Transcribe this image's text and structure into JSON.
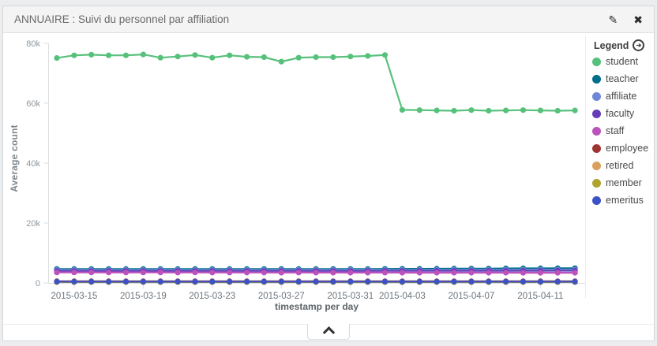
{
  "panel": {
    "title": "ANNUAIRE : Suivi du personnel par affiliation",
    "edit_glyph": "✎",
    "close_glyph": "✖"
  },
  "legend": {
    "title": "Legend"
  },
  "chart_data": {
    "type": "line",
    "title": "",
    "xlabel": "timestamp per day",
    "ylabel": "Average count",
    "ylim": [
      0,
      80000
    ],
    "grid": false,
    "legend_position": "right",
    "y_ticks": [
      {
        "v": 0,
        "label": "0"
      },
      {
        "v": 20000,
        "label": "20k"
      },
      {
        "v": 40000,
        "label": "40k"
      },
      {
        "v": 60000,
        "label": "60k"
      },
      {
        "v": 80000,
        "label": "80k"
      }
    ],
    "x_tick_labels": [
      "2015-03-15",
      "2015-03-19",
      "2015-03-23",
      "2015-03-27",
      "2015-03-31",
      "2015-04-03",
      "2015-04-07",
      "2015-04-11"
    ],
    "x_dates": [
      "2015-03-14",
      "2015-03-15",
      "2015-03-16",
      "2015-03-17",
      "2015-03-18",
      "2015-03-19",
      "2015-03-20",
      "2015-03-21",
      "2015-03-22",
      "2015-03-23",
      "2015-03-24",
      "2015-03-25",
      "2015-03-26",
      "2015-03-27",
      "2015-03-28",
      "2015-03-29",
      "2015-03-30",
      "2015-03-31",
      "2015-04-01",
      "2015-04-02",
      "2015-04-03",
      "2015-04-04",
      "2015-04-05",
      "2015-04-06",
      "2015-04-07",
      "2015-04-08",
      "2015-04-09",
      "2015-04-10",
      "2015-04-11",
      "2015-04-12",
      "2015-04-13"
    ],
    "series": [
      {
        "name": "student",
        "color": "#57c17b",
        "values": [
          75100,
          76000,
          76200,
          76000,
          76000,
          76300,
          75200,
          75600,
          76100,
          75200,
          76000,
          75500,
          75400,
          73900,
          75200,
          75400,
          75400,
          75600,
          75800,
          76100,
          57800,
          57700,
          57600,
          57500,
          57700,
          57500,
          57600,
          57700,
          57600,
          57500,
          57600
        ]
      },
      {
        "name": "teacher",
        "color": "#006e8a",
        "values": [
          4650,
          4640,
          4660,
          4650,
          4640,
          4660,
          4650,
          4630,
          4650,
          4660,
          4640,
          4650,
          4660,
          4650,
          4640,
          4660,
          4650,
          4660,
          4670,
          4680,
          4700,
          4720,
          4740,
          4760,
          4780,
          4800,
          4830,
          4860,
          4880,
          4900,
          4920
        ]
      },
      {
        "name": "affiliate",
        "color": "#6f87d8",
        "values": [
          4350,
          4340,
          4360,
          4350,
          4340,
          4350,
          4360,
          4340,
          4350,
          4350,
          4340,
          4360,
          4350,
          4340,
          4350,
          4360,
          4350,
          4360,
          4370,
          4380,
          4390,
          4400,
          4400,
          4410,
          4420,
          4420,
          4430,
          4440,
          4440,
          4450,
          4460
        ]
      },
      {
        "name": "faculty",
        "color": "#663db8",
        "values": [
          4000,
          3990,
          4010,
          4000,
          3990,
          4000,
          4010,
          3990,
          4000,
          4000,
          3990,
          4010,
          4000,
          3990,
          4000,
          4010,
          4000,
          4000,
          4010,
          4020,
          4020,
          4030,
          4030,
          4040,
          4040,
          4050,
          4050,
          4060,
          4060,
          4070,
          4070
        ]
      },
      {
        "name": "staff",
        "color": "#bc52bc",
        "values": [
          3500,
          3490,
          3500,
          3490,
          3480,
          3490,
          3500,
          3480,
          3490,
          3480,
          3470,
          3480,
          3470,
          3460,
          3470,
          3460,
          3450,
          3460,
          3450,
          3440,
          3440,
          3430,
          3430,
          3420,
          3420,
          3410,
          3410,
          3400,
          3400,
          3390,
          3390
        ]
      },
      {
        "name": "employee",
        "color": "#9e3533",
        "values": [
          550,
          548,
          552,
          550,
          549,
          551,
          550,
          548,
          550,
          551,
          549,
          550,
          551,
          550,
          549,
          550,
          551,
          550,
          550,
          551,
          552,
          550,
          551,
          550,
          552,
          551,
          550,
          552,
          551,
          550,
          552
        ]
      },
      {
        "name": "retired",
        "color": "#daa05d",
        "values": [
          350,
          350,
          351,
          350,
          349,
          350,
          351,
          350,
          350,
          349,
          350,
          351,
          350,
          350,
          351,
          350,
          349,
          350,
          350,
          351,
          350,
          350,
          351,
          350,
          350,
          351,
          350,
          350,
          351,
          350,
          350
        ]
      },
      {
        "name": "member",
        "color": "#b0a42e",
        "values": [
          280,
          280,
          281,
          280,
          279,
          280,
          281,
          280,
          280,
          279,
          280,
          281,
          280,
          280,
          281,
          280,
          279,
          280,
          280,
          281,
          280,
          280,
          281,
          280,
          280,
          281,
          280,
          280,
          281,
          280,
          280
        ]
      },
      {
        "name": "emeritus",
        "color": "#3d53c5",
        "values": [
          420,
          419,
          421,
          420,
          419,
          420,
          421,
          420,
          420,
          419,
          420,
          421,
          420,
          419,
          420,
          421,
          420,
          420,
          421,
          420,
          420,
          421,
          420,
          420,
          421,
          420,
          420,
          421,
          420,
          420,
          421
        ]
      }
    ]
  }
}
